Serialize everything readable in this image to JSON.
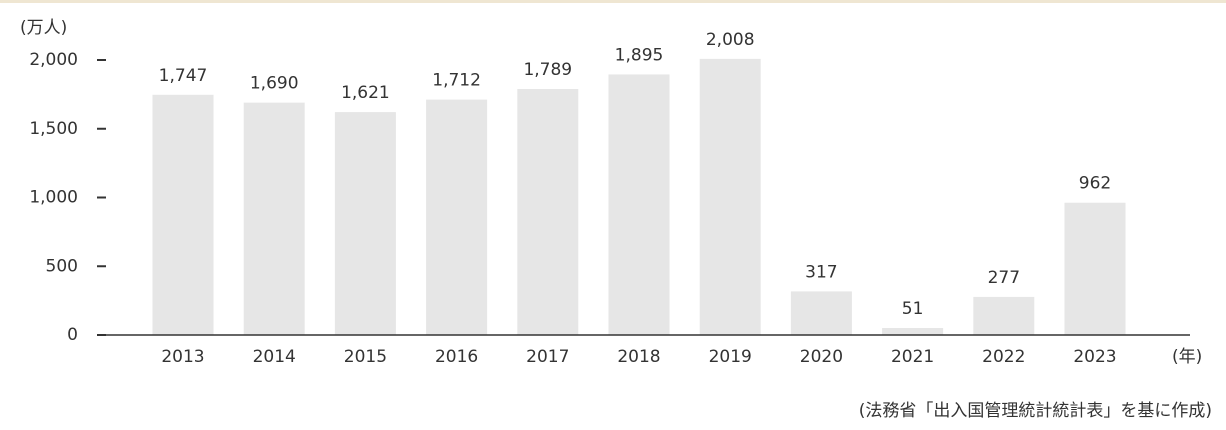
{
  "chart_data": {
    "type": "bar",
    "y_axis_label": "(万人)",
    "x_axis_label": "(年)",
    "source": "(法務省「出入国管理統計統計表」を基に作成)",
    "categories": [
      "2013",
      "2014",
      "2015",
      "2016",
      "2017",
      "2018",
      "2019",
      "2020",
      "2021",
      "2022",
      "2023"
    ],
    "values": [
      1747,
      1690,
      1621,
      1712,
      1789,
      1895,
      2008,
      317,
      51,
      277,
      962
    ],
    "value_labels": [
      "1,747",
      "1,690",
      "1,621",
      "1,712",
      "1,789",
      "1,895",
      "2,008",
      "317",
      "51",
      "277",
      "962"
    ],
    "color": "#e6e6e6",
    "ylim": [
      0,
      2000
    ],
    "yticks": [
      0,
      500,
      {
        "value": 1000,
        "label": "1,000"
      },
      {
        "value": 1500,
        "label": "1,500"
      },
      {
        "value": 2000,
        "label": "2,000"
      }
    ],
    "grid": false
  }
}
